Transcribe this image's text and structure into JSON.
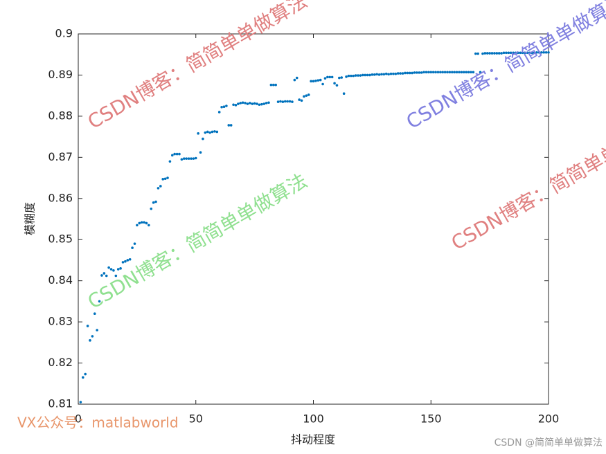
{
  "chart_data": {
    "type": "scatter",
    "xlabel": "抖动程度",
    "ylabel": "模糊度",
    "xlim": [
      0,
      200
    ],
    "xticks": [
      0,
      50,
      100,
      150,
      200
    ],
    "ylim": [
      0.81,
      0.9
    ],
    "yticks": [
      0.81,
      0.82,
      0.83,
      0.84,
      0.85,
      0.86,
      0.87,
      0.88,
      0.89,
      0.9
    ],
    "color": "#0072bd",
    "x": [
      1,
      2,
      3,
      4,
      5,
      6,
      7,
      8,
      9,
      10,
      11,
      12,
      13,
      14,
      15,
      16,
      17,
      18,
      19,
      20,
      21,
      22,
      23,
      24,
      25,
      26,
      27,
      28,
      29,
      30,
      31,
      32,
      33,
      34,
      35,
      36,
      37,
      38,
      39,
      40,
      41,
      42,
      43,
      44,
      45,
      46,
      47,
      48,
      49,
      50,
      51,
      52,
      53,
      54,
      55,
      56,
      57,
      58,
      59,
      60,
      61,
      62,
      63,
      64,
      65,
      66,
      67,
      68,
      69,
      70,
      71,
      72,
      73,
      74,
      75,
      76,
      77,
      78,
      79,
      80,
      81,
      82,
      83,
      84,
      85,
      86,
      87,
      88,
      89,
      90,
      91,
      92,
      93,
      94,
      95,
      96,
      97,
      98,
      99,
      100,
      101,
      102,
      103,
      104,
      105,
      106,
      107,
      108,
      109,
      110,
      111,
      112,
      113,
      114,
      115,
      116,
      117,
      118,
      119,
      120,
      121,
      122,
      123,
      124,
      125,
      126,
      127,
      128,
      129,
      130,
      131,
      132,
      133,
      134,
      135,
      136,
      137,
      138,
      139,
      140,
      141,
      142,
      143,
      144,
      145,
      146,
      147,
      148,
      149,
      150,
      151,
      152,
      153,
      154,
      155,
      156,
      157,
      158,
      159,
      160,
      161,
      162,
      163,
      164,
      165,
      166,
      167,
      168,
      169,
      170,
      171,
      172,
      173,
      174,
      175,
      176,
      177,
      178,
      179,
      180,
      181,
      182,
      183,
      184,
      185,
      186,
      187,
      188,
      189,
      190,
      191,
      192,
      193,
      194,
      195,
      196,
      197,
      198,
      199,
      200
    ],
    "values": [
      0.8105,
      0.8165,
      0.8173,
      0.829,
      0.8255,
      0.8265,
      0.832,
      0.828,
      0.835,
      0.8413,
      0.8418,
      0.8412,
      0.8432,
      0.8428,
      0.8425,
      0.8412,
      0.8428,
      0.843,
      0.8445,
      0.8447,
      0.845,
      0.8452,
      0.848,
      0.849,
      0.8535,
      0.854,
      0.8542,
      0.8542,
      0.854,
      0.8535,
      0.8575,
      0.859,
      0.8592,
      0.8625,
      0.863,
      0.8647,
      0.8648,
      0.865,
      0.869,
      0.8705,
      0.8708,
      0.8708,
      0.8708,
      0.8695,
      0.8697,
      0.8697,
      0.8697,
      0.8697,
      0.8697,
      0.8698,
      0.8758,
      0.8712,
      0.8745,
      0.876,
      0.8762,
      0.876,
      0.8762,
      0.8763,
      0.8762,
      0.881,
      0.8822,
      0.8823,
      0.8825,
      0.8778,
      0.8778,
      0.8828,
      0.8827,
      0.883,
      0.8832,
      0.8833,
      0.8832,
      0.883,
      0.8832,
      0.883,
      0.8831,
      0.883,
      0.8828,
      0.8829,
      0.883,
      0.8832,
      0.8833,
      0.8876,
      0.8876,
      0.8876,
      0.8835,
      0.8836,
      0.8835,
      0.8836,
      0.8836,
      0.8836,
      0.8835,
      0.8888,
      0.8893,
      0.884,
      0.8838,
      0.8848,
      0.885,
      0.8852,
      0.8885,
      0.8885,
      0.8886,
      0.8887,
      0.8888,
      0.8878,
      0.8892,
      0.8895,
      0.8895,
      0.8895,
      0.888,
      0.8875,
      0.8893,
      0.8894,
      0.8855,
      0.8896,
      0.8898,
      0.8898,
      0.8898,
      0.8899,
      0.8899,
      0.8899,
      0.89,
      0.89,
      0.89,
      0.89,
      0.8901,
      0.8901,
      0.8902,
      0.8901,
      0.8902,
      0.8902,
      0.8903,
      0.8902,
      0.8903,
      0.8903,
      0.8903,
      0.8904,
      0.8904,
      0.8904,
      0.8905,
      0.8905,
      0.8905,
      0.8905,
      0.8906,
      0.8906,
      0.8906,
      0.8906,
      0.8907,
      0.8907,
      0.8907,
      0.8907,
      0.8907,
      0.8907,
      0.8907,
      0.8907,
      0.8907,
      0.8907,
      0.8907,
      0.8907,
      0.8907,
      0.8907,
      0.8907,
      0.8907,
      0.8907,
      0.8907,
      0.8907,
      0.8907,
      0.8907,
      0.8907,
      0.8952,
      0.8952,
      0.8907,
      0.8952,
      0.8953,
      0.8953,
      0.8953,
      0.8953,
      0.8953,
      0.8953,
      0.8953,
      0.8953,
      0.8954,
      0.8954,
      0.8954,
      0.8954,
      0.8954,
      0.8954,
      0.8954,
      0.8954,
      0.8954,
      0.8954,
      0.8954,
      0.8954,
      0.8954,
      0.8954,
      0.8955,
      0.8955,
      0.8955,
      0.8955,
      0.8955,
      0.8955
    ],
    "annotations": [
      {
        "text": "CSDN博客：简简单单做算法",
        "color": "#e08080"
      },
      {
        "text": "CSDN博客：简简单单做算法",
        "color": "#8080e0"
      },
      {
        "text": "CSDN博客：简简单单做算法",
        "color": "#90e090"
      },
      {
        "text": "CSDN博客：简简单单做算法",
        "color": "#e08080"
      },
      {
        "text": "VX公众号：matlabworld",
        "color": "#e8956a"
      },
      {
        "text": "CSDN @简简单单做算法",
        "color": "#999999"
      }
    ]
  }
}
